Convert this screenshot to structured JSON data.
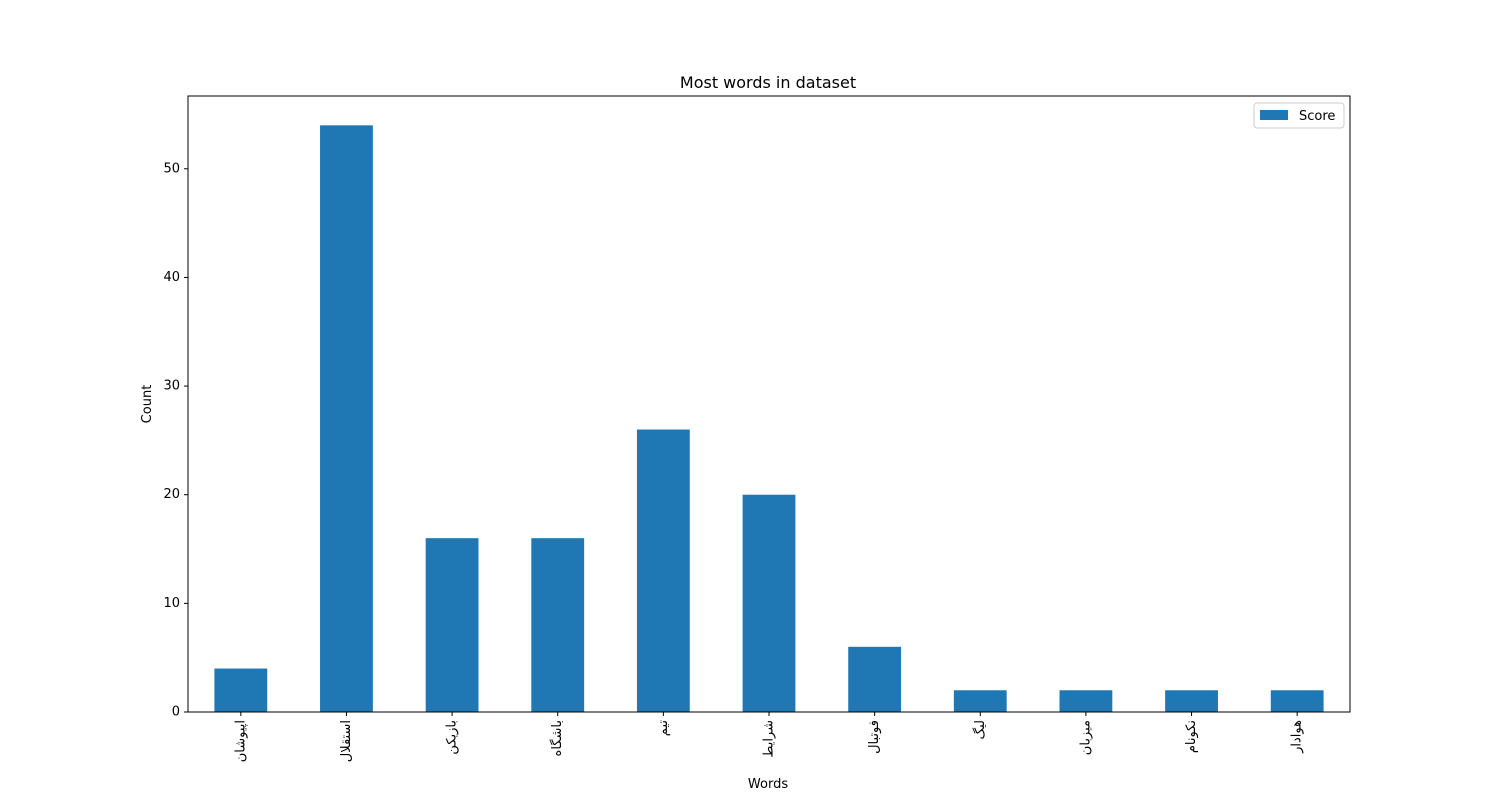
{
  "chart_data": {
    "type": "bar",
    "title": "Most words in dataset",
    "xlabel": "Words",
    "ylabel": "Count",
    "categories": [
      "اپیوشان",
      "استقلال",
      "بازیکن",
      "باشگاه",
      "تیم",
      "شرایط",
      "فوتبال",
      "لیگ",
      "میزبان",
      "نکونام",
      "هوادار"
    ],
    "series": [
      {
        "name": "Score",
        "values": [
          4,
          54,
          16,
          16,
          26,
          20,
          6,
          2,
          2,
          2,
          2
        ],
        "color": "#1f77b4"
      }
    ],
    "ylim": [
      0,
      56.7
    ],
    "yticks": [
      0,
      10,
      20,
      30,
      40,
      50
    ],
    "legend_position": "top-right",
    "grid": false
  }
}
